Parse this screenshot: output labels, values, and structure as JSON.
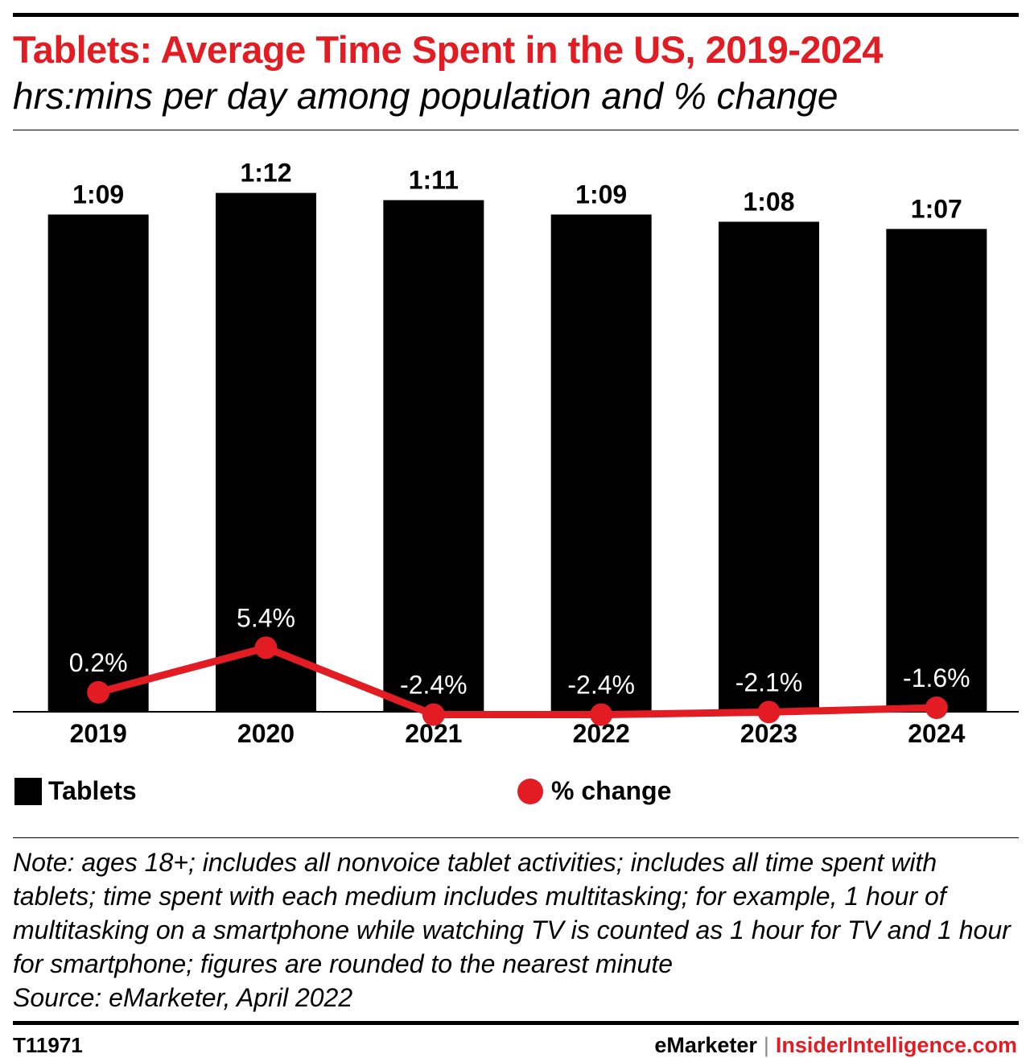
{
  "header": {
    "title": "Tablets: Average Time Spent in the US, 2019-2024",
    "subtitle": "hrs:mins per day among population and % change"
  },
  "chart_data": {
    "type": "bar",
    "categories": [
      "2019",
      "2020",
      "2021",
      "2022",
      "2023",
      "2024"
    ],
    "series": [
      {
        "name": "Tablets",
        "values": [
          69,
          72,
          71,
          69,
          68,
          67
        ],
        "labels": [
          "1:09",
          "1:12",
          "1:11",
          "1:09",
          "1:08",
          "1:07"
        ],
        "unit": "minutes per day",
        "color": "#000000"
      },
      {
        "name": "% change",
        "type": "line",
        "values": [
          0.2,
          5.4,
          -2.4,
          -2.4,
          -2.1,
          -1.6
        ],
        "labels": [
          "0.2%",
          "5.4%",
          "-2.4%",
          "-2.4%",
          "-2.1%",
          "-1.6%"
        ],
        "unit": "%",
        "color": "#e31c23"
      }
    ],
    "legend_position": "bottom",
    "grid": false
  },
  "legend": {
    "bars": "Tablets",
    "line": "% change"
  },
  "footnote": {
    "note": "Note: ages 18+; includes all nonvoice tablet activities; includes all time spent with tablets; time spent with each medium includes multitasking; for example, 1 hour of multitasking on a smartphone while watching TV is counted as 1 hour for TV and 1 hour for smartphone; figures are rounded to the nearest minute",
    "source": "Source: eMarketer, April 2022"
  },
  "footer": {
    "chart_id": "T11971",
    "brand_left": "eMarketer",
    "separator": "|",
    "brand_right": "InsiderIntelligence.com"
  }
}
